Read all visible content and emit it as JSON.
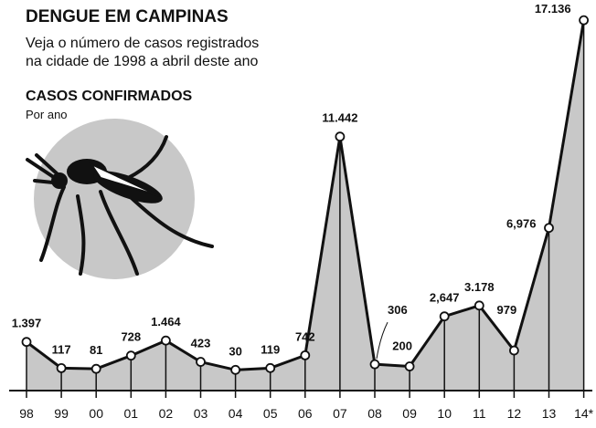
{
  "chart_data": {
    "type": "line",
    "title": "DENGUE EM CAMPINAS",
    "subtitle": [
      "Veja o número de casos registrados",
      "na cidade de 1998 a abril deste ano"
    ],
    "section_title": "CASOS CONFIRMADOS",
    "section_subtitle": "Por ano",
    "categories": [
      "98",
      "99",
      "00",
      "01",
      "02",
      "03",
      "04",
      "05",
      "06",
      "07",
      "08",
      "09",
      "10",
      "11",
      "12",
      "13",
      "14*"
    ],
    "values": [
      1397,
      117,
      81,
      728,
      1464,
      423,
      30,
      119,
      742,
      11442,
      306,
      200,
      2647,
      3178,
      979,
      6976,
      17136
    ],
    "value_labels": [
      "1.397",
      "117",
      "81",
      "728",
      "1.464",
      "423",
      "30",
      "119",
      "742",
      "11.442",
      "306",
      "200",
      "2,647",
      "3.178",
      "979",
      "6,976",
      "17.136"
    ],
    "color": "#111111",
    "fill": "#c8c8c8"
  }
}
